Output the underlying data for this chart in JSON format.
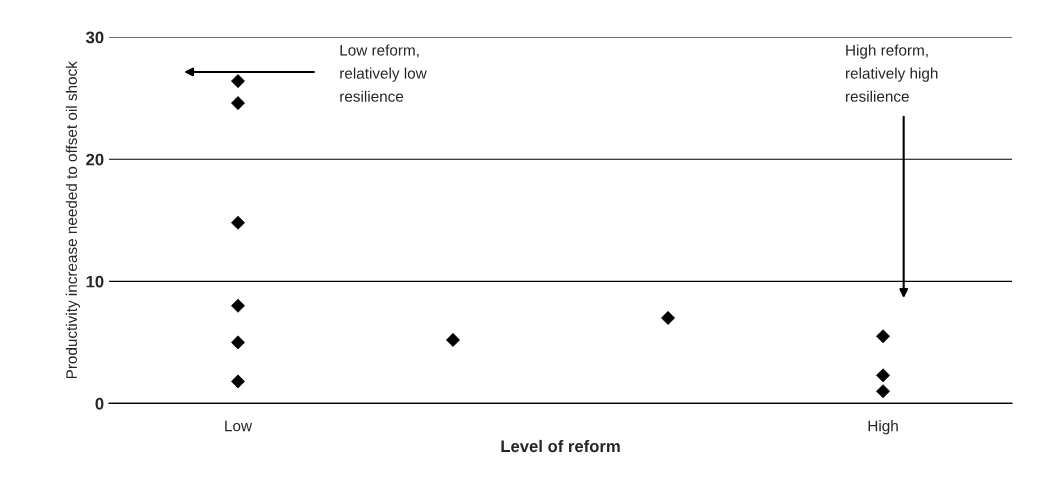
{
  "chart_data": {
    "type": "scatter",
    "xlabel": "Level of reform",
    "ylabel": "Productivity increase needed to offset oil shock",
    "categories": [
      "Low",
      null,
      null,
      "High"
    ],
    "series": [
      {
        "color": "#000000",
        "values": [
          26.4,
          null,
          null,
          5.5
        ]
      },
      {
        "color": "#000000",
        "values": [
          24.6,
          null,
          null,
          2.3
        ]
      },
      {
        "color": "#000000",
        "values": [
          14.8,
          5.2,
          7.0,
          1.0
        ]
      },
      {
        "color": "#000000",
        "values": [
          8.0,
          null,
          null,
          null
        ]
      },
      {
        "color": "#000000",
        "values": [
          5.0,
          null,
          null,
          null
        ]
      },
      {
        "color": "#000000",
        "values": [
          1.8,
          null,
          null,
          null
        ]
      }
    ],
    "ylim": [
      0,
      30
    ],
    "yticks": [
      0,
      10,
      20,
      30
    ],
    "grid": "y",
    "legend": false,
    "marker": "diamond",
    "annotations": [
      "Low reform,\nrelatively low\nresilience",
      "High reform,\nrelatively high\nresilience"
    ]
  }
}
